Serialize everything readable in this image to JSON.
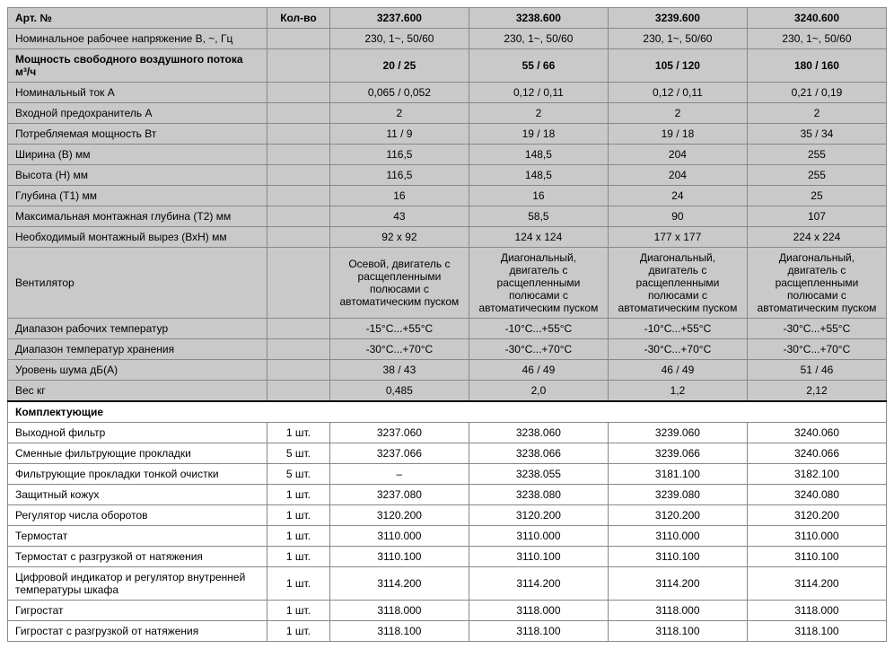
{
  "colors": {
    "shade": "#c9c9c9",
    "border": "#888888",
    "text": "#000000"
  },
  "header": {
    "art_no": "Арт. №",
    "qty": "Кол-во",
    "c1": "3237.600",
    "c2": "3238.600",
    "c3": "3239.600",
    "c4": "3240.600"
  },
  "rows": [
    {
      "label": "Номинальное рабочее напряжение В, ~, Гц",
      "v": [
        "230, 1~, 50/60",
        "230, 1~, 50/60",
        "230, 1~, 50/60",
        "230, 1~, 50/60"
      ],
      "shade": true
    },
    {
      "label": "Мощность свободного воздушного потока м³/ч",
      "v": [
        "20 / 25",
        "55 / 66",
        "105 / 120",
        "180 / 160"
      ],
      "shade": true,
      "bold": true
    },
    {
      "label": "Номинальный ток А",
      "v": [
        "0,065 / 0,052",
        "0,12 / 0,11",
        "0,12 / 0,11",
        "0,21 / 0,19"
      ],
      "shade": true
    },
    {
      "label": "Входной предохранитель А",
      "v": [
        "2",
        "2",
        "2",
        "2"
      ],
      "shade": true
    },
    {
      "label": "Потребляемая мощность Вт",
      "v": [
        "11 / 9",
        "19 / 18",
        "19 / 18",
        "35 / 34"
      ],
      "shade": true
    },
    {
      "label": "Ширина (В) мм",
      "v": [
        "116,5",
        "148,5",
        "204",
        "255"
      ],
      "shade": true
    },
    {
      "label": "Высота (Н) мм",
      "v": [
        "116,5",
        "148,5",
        "204",
        "255"
      ],
      "shade": true
    },
    {
      "label": "Глубина (Т1) мм",
      "v": [
        "16",
        "16",
        "24",
        "25"
      ],
      "shade": true
    },
    {
      "label": "Максимальная монтажная глубина (Т2) мм",
      "v": [
        "43",
        "58,5",
        "90",
        "107"
      ],
      "shade": true
    },
    {
      "label": "Необходимый монтажный вырез (ВхН) мм",
      "v": [
        "92 x 92",
        "124 x 124",
        "177 x 177",
        "224 x 224"
      ],
      "shade": true
    },
    {
      "label": "Вентилятор",
      "v": [
        "Осевой, двигатель с расщепленными полюсами с автоматическим пуском",
        "Диагональный, двигатель с расщепленными полюсами с автоматическим пуском",
        "Диагональный, двигатель с расщепленными полюсами с автоматическим пуском",
        "Диагональный, двигатель с расщепленными полюсами с автоматическим пуском"
      ],
      "shade": true
    },
    {
      "label": "Диапазон рабочих температур",
      "v": [
        "-15°C...+55°C",
        "-10°C...+55°C",
        "-10°C...+55°C",
        "-30°C...+55°C"
      ],
      "shade": true
    },
    {
      "label": "Диапазон температур хранения",
      "v": [
        "-30°C...+70°C",
        "-30°C...+70°C",
        "-30°C...+70°C",
        "-30°C...+70°C"
      ],
      "shade": true
    },
    {
      "label": "Уровень шума дБ(А)",
      "v": [
        "38 / 43",
        "46 / 49",
        "46 / 49",
        "51 / 46"
      ],
      "shade": true
    },
    {
      "label": "Вес кг",
      "v": [
        "0,485",
        "2,0",
        "1,2",
        "2,12"
      ],
      "shade": true
    }
  ],
  "section": "Комплектующие",
  "acc": [
    {
      "label": "Выходной фильтр",
      "qty": "1 шт.",
      "v": [
        "3237.060",
        "3238.060",
        "3239.060",
        "3240.060"
      ]
    },
    {
      "label": "Сменные фильтрующие прокладки",
      "qty": "5 шт.",
      "v": [
        "3237.066",
        "3238.066",
        "3239.066",
        "3240.066"
      ]
    },
    {
      "label": "Фильтрующие прокладки тонкой очистки",
      "qty": "5 шт.",
      "v": [
        "–",
        "3238.055",
        "3181.100",
        "3182.100"
      ]
    },
    {
      "label": "Защитный кожух",
      "qty": "1 шт.",
      "v": [
        "3237.080",
        "3238.080",
        "3239.080",
        "3240.080"
      ]
    },
    {
      "label": "Регулятор числа оборотов",
      "qty": "1 шт.",
      "v": [
        "3120.200",
        "3120.200",
        "3120.200",
        "3120.200"
      ]
    },
    {
      "label": "Термостат",
      "qty": "1 шт.",
      "v": [
        "3110.000",
        "3110.000",
        "3110.000",
        "3110.000"
      ]
    },
    {
      "label": "Термостат с разгрузкой от натяжения",
      "qty": "1 шт.",
      "v": [
        "3110.100",
        "3110.100",
        "3110.100",
        "3110.100"
      ]
    },
    {
      "label": "Цифровой индикатор и регулятор внутренней температуры шкафа",
      "qty": "1 шт.",
      "v": [
        "3114.200",
        "3114.200",
        "3114.200",
        "3114.200"
      ]
    },
    {
      "label": "Гигростат",
      "qty": "1 шт.",
      "v": [
        "3118.000",
        "3118.000",
        "3118.000",
        "3118.000"
      ]
    },
    {
      "label": "Гигростат с разгрузкой от натяжения",
      "qty": "1 шт.",
      "v": [
        "3118.100",
        "3118.100",
        "3118.100",
        "3118.100"
      ]
    }
  ]
}
